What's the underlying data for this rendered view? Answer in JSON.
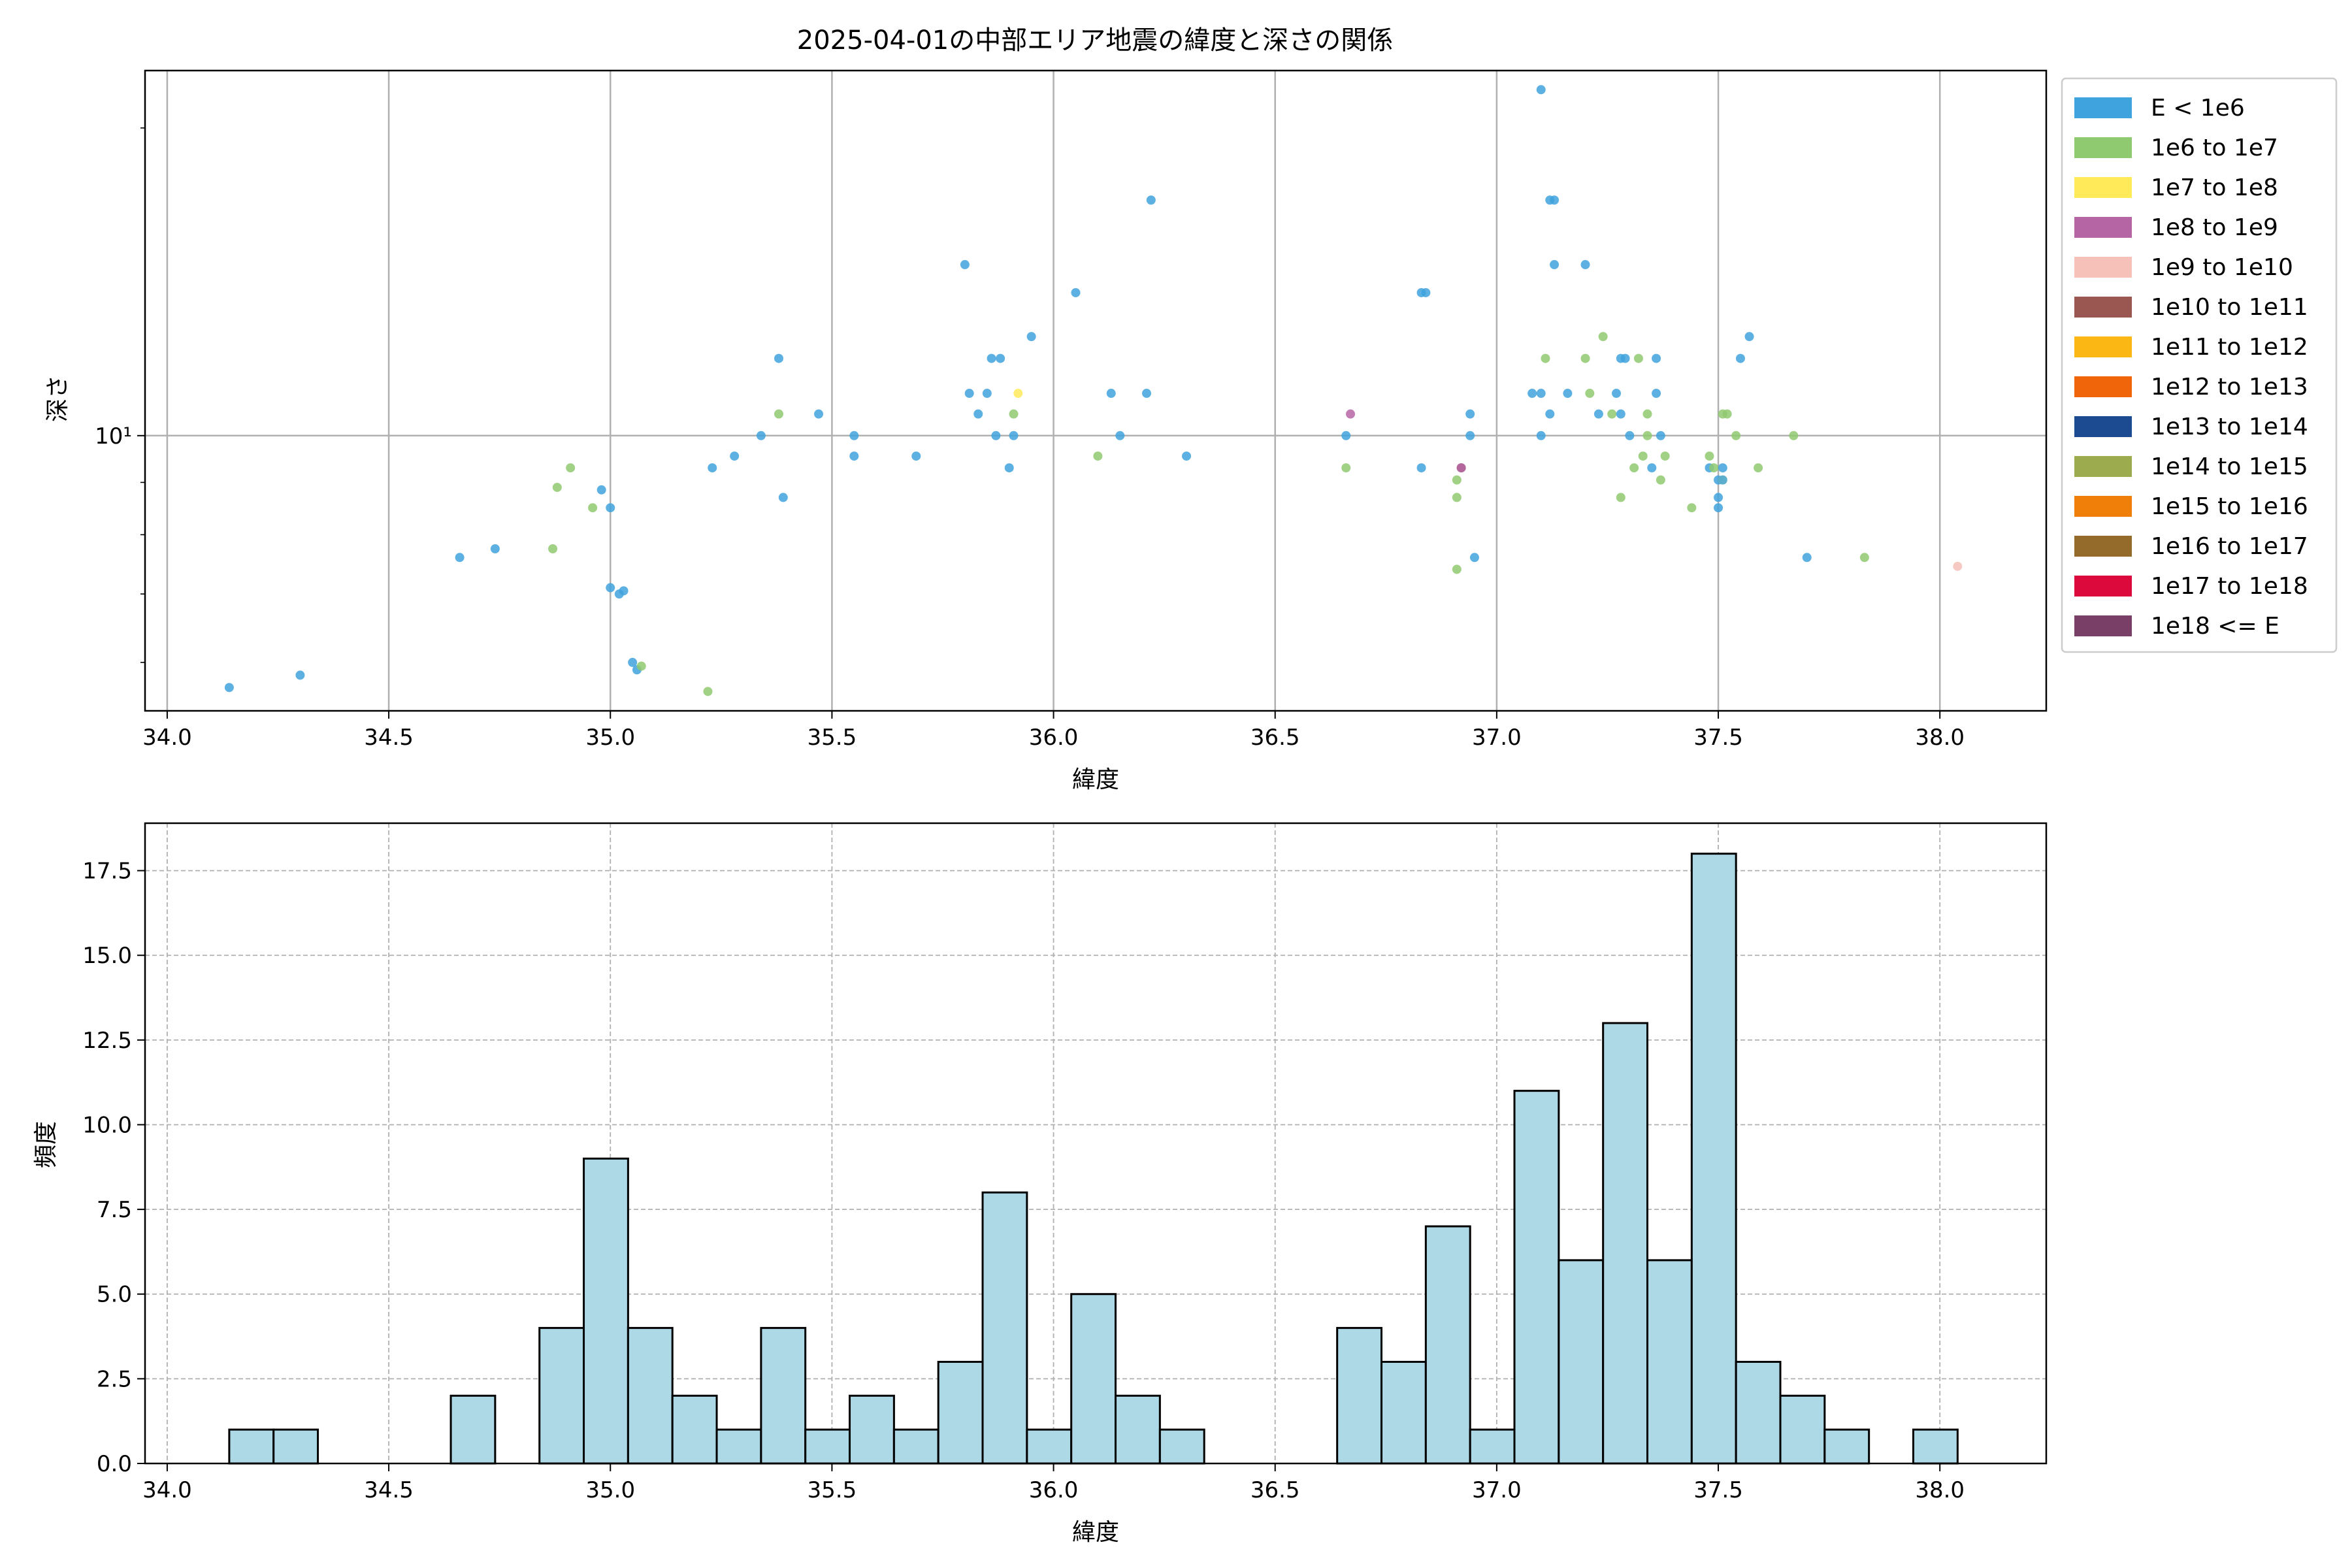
{
  "colors": {
    "scatter": [
      "#3fa3dd",
      "#8fc970",
      "#ffeb5a",
      "#b665a4",
      "#f5c1b8",
      "#9a5752",
      "#fbb814",
      "#f0640a",
      "#1c4b92",
      "#9cab4d",
      "#f07f0a",
      "#946b2b",
      "#dc0a3c",
      "#793f66"
    ],
    "hist_fill": "#add8e6",
    "hist_edge": "#000000",
    "grid": "#b0b0b0"
  },
  "chart_data": [
    {
      "type": "scatter",
      "title": "2025-04-01の中部エリア地震の緯度と深さの関係",
      "xlabel": "緯度",
      "ylabel": "深さ",
      "xlim": [
        33.95,
        38.24
      ],
      "ylim": [
        5.38,
        22.76
      ],
      "yscale": "log",
      "xticks": [
        34.0,
        34.5,
        35.0,
        35.5,
        36.0,
        36.5,
        37.0,
        37.5,
        38.0
      ],
      "xtick_labels": [
        "34.0",
        "34.5",
        "35.0",
        "35.5",
        "36.0",
        "36.5",
        "37.0",
        "37.5",
        "38.0"
      ],
      "yticks": [
        10
      ],
      "ytick_labels": [
        "10¹"
      ],
      "grid": true,
      "legend_position": "outside-right",
      "legend": [
        "E < 1e6",
        "1e6 to 1e7",
        "1e7 to 1e8",
        "1e8 to 1e9",
        "1e9 to 1e10",
        "1e10 to 1e11",
        "1e11 to 1e12",
        "1e12 to 1e13",
        "1e13 to 1e14",
        "1e14 to 1e15",
        "1e15 to 1e16",
        "1e16 to 1e17",
        "1e17 to 1e18",
        "1e18 <= E"
      ],
      "points": [
        [
          34.14,
          5.67,
          0
        ],
        [
          34.3,
          5.83,
          0
        ],
        [
          34.66,
          7.6,
          0
        ],
        [
          34.74,
          7.75,
          0
        ],
        [
          34.87,
          7.75,
          1
        ],
        [
          34.88,
          8.9,
          1
        ],
        [
          34.91,
          9.3,
          1
        ],
        [
          34.96,
          8.5,
          1
        ],
        [
          34.98,
          8.85,
          0
        ],
        [
          35.0,
          8.5,
          0
        ],
        [
          35.0,
          7.1,
          0
        ],
        [
          35.02,
          7.0,
          0
        ],
        [
          35.03,
          7.05,
          0
        ],
        [
          35.05,
          6.0,
          0
        ],
        [
          35.06,
          5.9,
          0
        ],
        [
          35.07,
          5.95,
          1
        ],
        [
          35.22,
          5.62,
          1
        ],
        [
          35.23,
          9.3,
          0
        ],
        [
          35.28,
          9.55,
          0
        ],
        [
          35.34,
          10.0,
          0
        ],
        [
          35.38,
          11.9,
          0
        ],
        [
          35.39,
          8.7,
          0
        ],
        [
          35.38,
          10.5,
          1
        ],
        [
          35.47,
          10.5,
          0
        ],
        [
          35.55,
          10.0,
          0
        ],
        [
          35.55,
          9.55,
          0
        ],
        [
          35.69,
          9.55,
          0
        ],
        [
          35.8,
          14.7,
          0
        ],
        [
          35.81,
          11.0,
          0
        ],
        [
          35.83,
          10.5,
          0
        ],
        [
          35.85,
          11.0,
          0
        ],
        [
          35.86,
          11.9,
          0
        ],
        [
          35.87,
          10.0,
          0
        ],
        [
          35.88,
          11.9,
          0
        ],
        [
          35.9,
          9.3,
          0
        ],
        [
          35.91,
          10.0,
          0
        ],
        [
          35.91,
          10.5,
          1
        ],
        [
          35.92,
          11.0,
          2
        ],
        [
          35.95,
          12.5,
          0
        ],
        [
          36.05,
          13.8,
          0
        ],
        [
          36.1,
          9.55,
          1
        ],
        [
          36.13,
          11.0,
          0
        ],
        [
          36.15,
          10.0,
          0
        ],
        [
          36.21,
          11.0,
          0
        ],
        [
          36.22,
          17.0,
          0
        ],
        [
          36.3,
          9.55,
          0
        ],
        [
          36.66,
          9.3,
          1
        ],
        [
          36.66,
          10.0,
          0
        ],
        [
          36.67,
          10.5,
          3
        ],
        [
          36.83,
          9.3,
          0
        ],
        [
          36.83,
          13.8,
          0
        ],
        [
          36.84,
          13.8,
          0
        ],
        [
          36.91,
          9.05,
          1
        ],
        [
          36.91,
          8.7,
          1
        ],
        [
          36.91,
          7.4,
          1
        ],
        [
          36.92,
          9.3,
          5
        ],
        [
          36.92,
          9.3,
          3
        ],
        [
          36.94,
          10.0,
          0
        ],
        [
          36.94,
          10.5,
          0
        ],
        [
          36.95,
          7.6,
          0
        ],
        [
          37.08,
          11.0,
          0
        ],
        [
          37.1,
          11.0,
          0
        ],
        [
          37.1,
          10.0,
          0
        ],
        [
          37.1,
          21.8,
          0
        ],
        [
          37.11,
          11.9,
          1
        ],
        [
          37.12,
          10.5,
          0
        ],
        [
          37.12,
          17.0,
          0
        ],
        [
          37.13,
          17.0,
          0
        ],
        [
          37.13,
          14.7,
          0
        ],
        [
          37.16,
          11.0,
          0
        ],
        [
          37.2,
          11.9,
          1
        ],
        [
          37.2,
          14.7,
          0
        ],
        [
          37.21,
          11.0,
          1
        ],
        [
          37.23,
          10.5,
          0
        ],
        [
          37.24,
          12.5,
          1
        ],
        [
          37.26,
          10.5,
          1
        ],
        [
          37.27,
          11.0,
          0
        ],
        [
          37.28,
          10.5,
          0
        ],
        [
          37.28,
          11.9,
          0
        ],
        [
          37.29,
          11.9,
          0
        ],
        [
          37.28,
          8.7,
          1
        ],
        [
          37.3,
          10.0,
          0
        ],
        [
          37.31,
          9.3,
          1
        ],
        [
          37.32,
          11.9,
          1
        ],
        [
          37.33,
          9.55,
          1
        ],
        [
          37.34,
          10.0,
          1
        ],
        [
          37.34,
          10.5,
          1
        ],
        [
          37.35,
          9.3,
          0
        ],
        [
          37.36,
          11.9,
          0
        ],
        [
          37.36,
          11.0,
          0
        ],
        [
          37.37,
          10.0,
          0
        ],
        [
          37.37,
          9.05,
          1
        ],
        [
          37.38,
          9.55,
          1
        ],
        [
          37.44,
          8.5,
          1
        ],
        [
          37.48,
          9.55,
          1
        ],
        [
          37.48,
          9.3,
          0
        ],
        [
          37.49,
          9.3,
          1
        ],
        [
          37.5,
          9.05,
          0
        ],
        [
          37.5,
          8.7,
          0
        ],
        [
          37.5,
          8.5,
          0
        ],
        [
          37.51,
          9.05,
          2
        ],
        [
          37.51,
          9.05,
          0
        ],
        [
          37.51,
          9.3,
          0
        ],
        [
          37.51,
          10.5,
          1
        ],
        [
          37.52,
          10.5,
          1
        ],
        [
          37.54,
          10.0,
          1
        ],
        [
          37.55,
          11.9,
          0
        ],
        [
          37.57,
          12.5,
          0
        ],
        [
          37.59,
          9.3,
          1
        ],
        [
          37.67,
          10.0,
          1
        ],
        [
          37.7,
          7.6,
          0
        ],
        [
          37.83,
          7.6,
          1
        ],
        [
          38.04,
          7.45,
          4
        ]
      ]
    },
    {
      "type": "bar",
      "xlabel": "緯度",
      "ylabel": "頻度",
      "xlim": [
        33.95,
        38.24
      ],
      "ylim": [
        0,
        18.9
      ],
      "xticks": [
        34.0,
        34.5,
        35.0,
        35.5,
        36.0,
        36.5,
        37.0,
        37.5,
        38.0
      ],
      "xtick_labels": [
        "34.0",
        "34.5",
        "35.0",
        "35.5",
        "36.0",
        "36.5",
        "37.0",
        "37.5",
        "38.0"
      ],
      "yticks": [
        0,
        2.5,
        5,
        7.5,
        10,
        12.5,
        15,
        17.5
      ],
      "ytick_labels": [
        "0.0",
        "2.5",
        "5.0",
        "7.5",
        "10.0",
        "12.5",
        "15.0",
        "17.5"
      ],
      "grid": true,
      "bin_start": 34.14,
      "bin_width": 0.1,
      "values": [
        1,
        1,
        0,
        0,
        0,
        2,
        0,
        4,
        9,
        4,
        2,
        1,
        4,
        1,
        2,
        1,
        3,
        8,
        1,
        5,
        2,
        1,
        0,
        0,
        0,
        4,
        3,
        7,
        1,
        11,
        6,
        13,
        6,
        18,
        3,
        2,
        1,
        0,
        1
      ]
    }
  ]
}
